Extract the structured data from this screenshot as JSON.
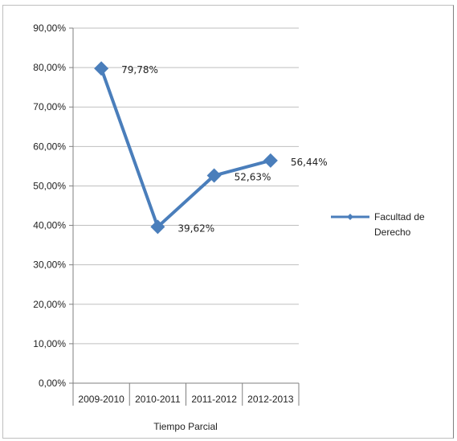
{
  "chart_data": {
    "type": "line",
    "categories": [
      "2009-2010",
      "2010-2011",
      "2011-2012",
      "2012-2013"
    ],
    "series": [
      {
        "name": "Facultad de Derecho",
        "values": [
          79.78,
          39.62,
          52.63,
          56.44
        ],
        "labels": [
          "79,78%",
          "39,62%",
          "52,63%",
          "56,44%"
        ],
        "color": "#4a7ebb"
      }
    ],
    "y_ticks": [
      "0,00%",
      "10,00%",
      "20,00%",
      "30,00%",
      "40,00%",
      "50,00%",
      "60,00%",
      "70,00%",
      "80,00%",
      "90,00%"
    ],
    "ylim": [
      0,
      90
    ],
    "xlabel": "Tiempo Parcial",
    "ylabel": "",
    "title": "",
    "legend": {
      "position": "right",
      "label_lines": [
        "Facultad de",
        "Derecho"
      ]
    },
    "grid": true,
    "gridColor": "#bfbfbf",
    "axisColor": "#7f7f7f"
  }
}
